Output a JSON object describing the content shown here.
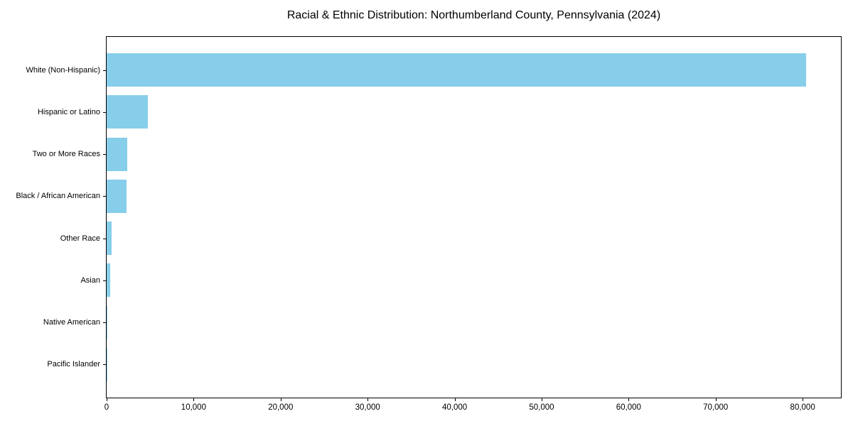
{
  "chart_data": {
    "type": "bar",
    "orientation": "horizontal",
    "title": "Racial & Ethnic Distribution: Northumberland County, Pennsylvania (2024)",
    "categories": [
      "White (Non-Hispanic)",
      "Hispanic or Latino",
      "Two or More Races",
      "Black / African American",
      "Other Race",
      "Asian",
      "Native American",
      "Pacific Islander"
    ],
    "values": [
      80400,
      4700,
      2400,
      2300,
      550,
      430,
      120,
      25
    ],
    "xlabel": "",
    "ylabel": "",
    "xlim": [
      0,
      84400
    ],
    "x_ticks": [
      0,
      10000,
      20000,
      30000,
      40000,
      50000,
      60000,
      70000,
      80000
    ],
    "x_tick_labels": [
      "0",
      "10,000",
      "20,000",
      "30,000",
      "40,000",
      "50,000",
      "60,000",
      "70,000",
      "80,000"
    ],
    "bar_color": "#87CEEB",
    "spine_color": "#000000",
    "grid": false,
    "legend_position": "none"
  }
}
